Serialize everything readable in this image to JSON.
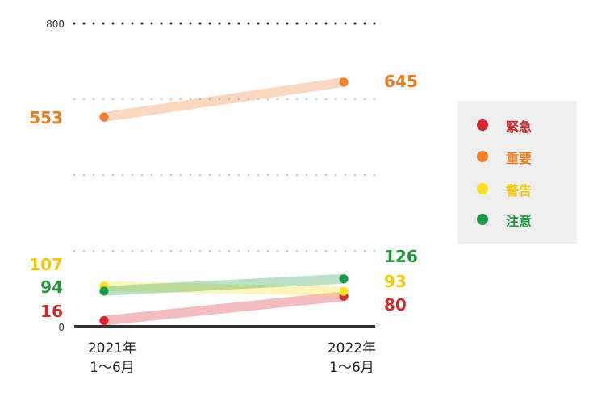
{
  "chart_data": {
    "type": "line",
    "categories": [
      {
        "year": "2021年",
        "period": "1〜6月"
      },
      {
        "year": "2022年",
        "period": "1〜6月"
      }
    ],
    "ylim": [
      0,
      800
    ],
    "ytick_labels": [
      "0",
      "800"
    ],
    "series": [
      {
        "name": "緊急",
        "values": [
          16,
          80
        ],
        "color": "#d7262e",
        "value_color": "#c92a2a"
      },
      {
        "name": "重要",
        "values": [
          553,
          645
        ],
        "color": "#ee7f2d",
        "value_color": "#e67e22"
      },
      {
        "name": "警告",
        "values": [
          107,
          93
        ],
        "color": "#fadf22",
        "value_color": "#f2c80f"
      },
      {
        "name": "注意",
        "values": [
          94,
          126
        ],
        "color": "#1e9b4a",
        "value_color": "#22963f"
      }
    ],
    "legend_position": "right",
    "grid": "dotted"
  }
}
